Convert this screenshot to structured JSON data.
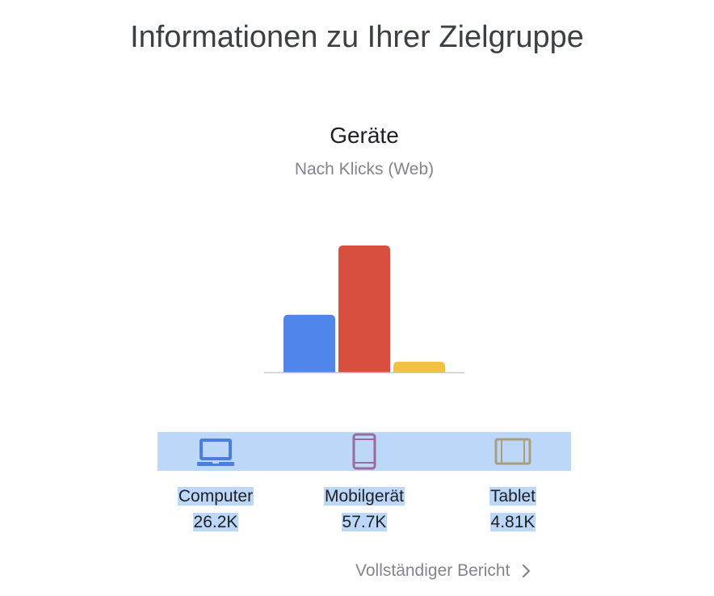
{
  "page": {
    "title": "Informationen zu Ihrer Zielgruppe"
  },
  "card": {
    "title": "Geräte",
    "subtitle": "Nach Klicks (Web)"
  },
  "chart_data": {
    "type": "bar",
    "categories": [
      "Computer",
      "Mobilgerät",
      "Tablet"
    ],
    "values": [
      26.2,
      57.7,
      4.81
    ],
    "unit": "K",
    "colors": [
      "#5086ec",
      "#d94f3f",
      "#f2c042"
    ]
  },
  "devices": [
    {
      "icon": "laptop-icon",
      "label": "Computer",
      "value": "26.2K",
      "color": "#4a7fde"
    },
    {
      "icon": "mobile-phone-icon",
      "label": "Mobilgerät",
      "value": "57.7K",
      "color": "#9c6a9e"
    },
    {
      "icon": "tablet-icon",
      "label": "Tablet",
      "value": "4.81K",
      "color": "#a99e7e"
    }
  ],
  "footer": {
    "report_link": "Vollständiger Bericht",
    "chevron_icon": "chevron-right-icon"
  }
}
